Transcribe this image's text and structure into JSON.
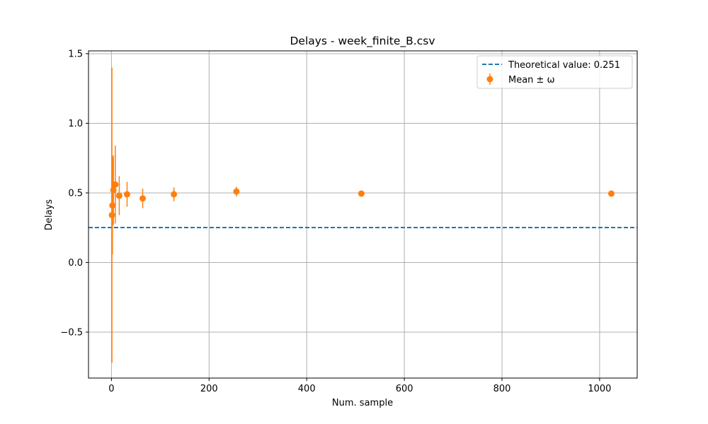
{
  "chart_data": {
    "type": "scatter",
    "title": "Delays - week_finite_B.csv",
    "xlabel": "Num. sample",
    "ylabel": "Delays",
    "xlim": [
      -47,
      1077
    ],
    "ylim": [
      -0.83,
      1.52
    ],
    "xticks": [
      0,
      200,
      400,
      600,
      800,
      1000
    ],
    "xtick_labels": [
      "0",
      "200",
      "400",
      "600",
      "800",
      "1000"
    ],
    "yticks": [
      -0.5,
      0.0,
      0.5,
      1.0,
      1.5
    ],
    "ytick_labels": [
      "−0.5",
      "0.0",
      "0.5",
      "1.0",
      "1.5"
    ],
    "grid": true,
    "legend_position": "top-right",
    "reference_line": {
      "name": "Theoretical value: 0.251",
      "value": 0.251,
      "color": "#1f77b4",
      "style": "dashed"
    },
    "series": [
      {
        "name": "Mean ± ω",
        "color": "#ff7f0e",
        "x": [
          1,
          2,
          4,
          8,
          16,
          32,
          64,
          128,
          256,
          512,
          1024
        ],
        "y": [
          0.34,
          0.41,
          0.52,
          0.56,
          0.48,
          0.49,
          0.46,
          0.49,
          0.51,
          0.495,
          0.495
        ],
        "yerr": [
          1.06,
          0.35,
          0.25,
          0.28,
          0.14,
          0.09,
          0.07,
          0.05,
          0.035,
          0.015,
          0.01
        ]
      }
    ]
  }
}
